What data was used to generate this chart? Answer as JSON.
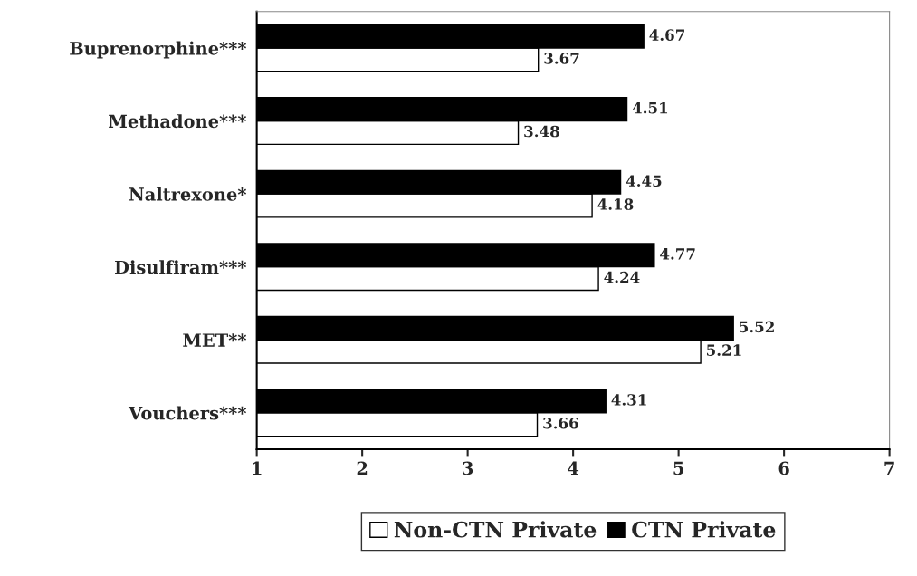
{
  "chart_data": {
    "type": "bar",
    "orientation": "horizontal",
    "categories": [
      "Buprenorphine***",
      "Methadone***",
      "Naltrexone*",
      "Disulfiram***",
      "MET**",
      "Vouchers***"
    ],
    "series": [
      {
        "name": "Non-CTN Private",
        "color": "#ffffff",
        "values": [
          3.67,
          3.48,
          4.18,
          4.24,
          5.21,
          3.66
        ]
      },
      {
        "name": "CTN Private",
        "color": "#000000",
        "values": [
          4.67,
          4.51,
          4.45,
          4.77,
          5.52,
          4.31
        ]
      }
    ],
    "xlim": [
      1,
      7
    ],
    "xticks": [
      1,
      2,
      3,
      4,
      5,
      6,
      7
    ],
    "data_labels": true,
    "grid": false,
    "legend": "bottom"
  }
}
